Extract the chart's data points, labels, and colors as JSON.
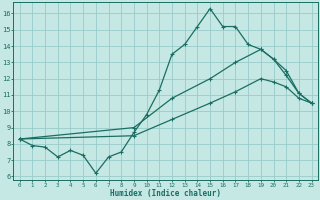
{
  "xlabel": "Humidex (Indice chaleur)",
  "xlim": [
    -0.5,
    23.5
  ],
  "ylim": [
    5.8,
    16.7
  ],
  "yticks": [
    6,
    7,
    8,
    9,
    10,
    11,
    12,
    13,
    14,
    15,
    16
  ],
  "xticks": [
    0,
    1,
    2,
    3,
    4,
    5,
    6,
    7,
    8,
    9,
    10,
    11,
    12,
    13,
    14,
    15,
    16,
    17,
    18,
    19,
    20,
    21,
    22,
    23
  ],
  "bg_color": "#c5e8e5",
  "grid_color": "#99ccca",
  "line_color": "#1a6e62",
  "line1_x": [
    0,
    1,
    2,
    3,
    4,
    5,
    6,
    7,
    8,
    9,
    10,
    11,
    12,
    13,
    14,
    15,
    16,
    17,
    18,
    19,
    20,
    21,
    22,
    23
  ],
  "line1_y": [
    8.3,
    7.9,
    7.8,
    7.2,
    7.6,
    7.3,
    6.2,
    7.2,
    7.5,
    8.7,
    9.8,
    11.3,
    13.5,
    14.1,
    15.2,
    16.3,
    15.2,
    15.2,
    14.1,
    13.8,
    13.2,
    12.2,
    11.1,
    10.5
  ],
  "line2_x": [
    0,
    9,
    12,
    15,
    17,
    19,
    20,
    21,
    22,
    23
  ],
  "line2_y": [
    8.3,
    9.0,
    10.8,
    12.0,
    13.0,
    13.8,
    13.2,
    12.5,
    11.1,
    10.5
  ],
  "line3_x": [
    0,
    9,
    12,
    15,
    17,
    19,
    20,
    21,
    22,
    23
  ],
  "line3_y": [
    8.3,
    8.5,
    9.5,
    10.5,
    11.2,
    12.0,
    11.8,
    11.5,
    10.8,
    10.5
  ]
}
